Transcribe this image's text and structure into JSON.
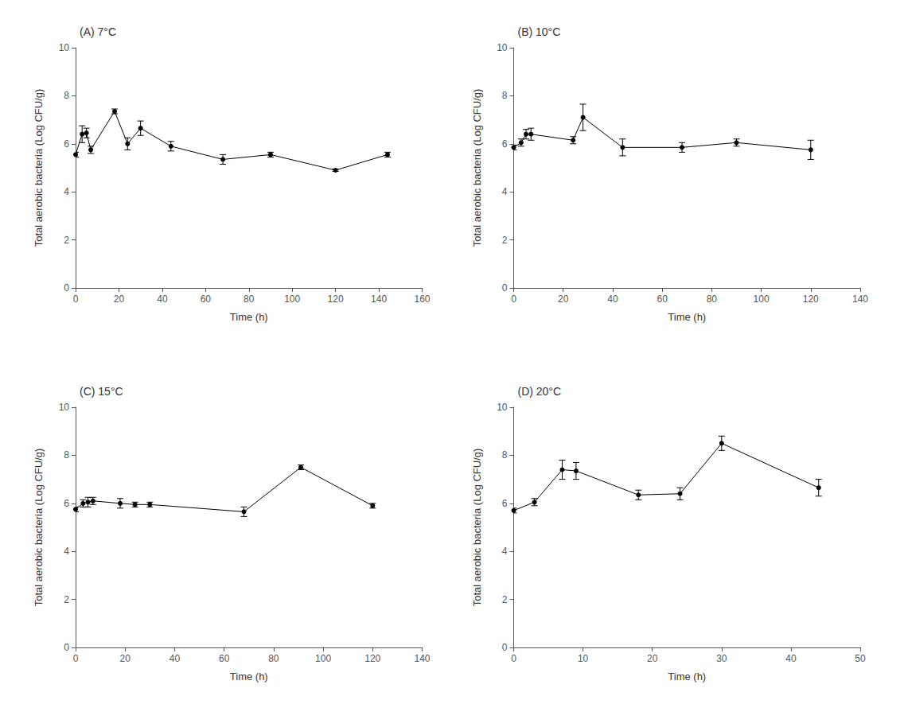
{
  "chart_data": [
    {
      "type": "line",
      "title": "(A) 7°C",
      "xlabel": "Time (h)",
      "ylabel": "Total aerobic bacteria (Log CFU/g)",
      "x": [
        0,
        3,
        5,
        7,
        18,
        24,
        30,
        44,
        68,
        90,
        120,
        144
      ],
      "values": [
        5.55,
        6.4,
        6.45,
        5.75,
        7.35,
        6.0,
        6.65,
        5.9,
        5.35,
        5.55,
        4.9,
        5.55
      ],
      "yerr": [
        0.1,
        0.35,
        0.2,
        0.15,
        0.1,
        0.25,
        0.3,
        0.2,
        0.2,
        0.1,
        0.05,
        0.1
      ],
      "xlim": [
        0,
        160
      ],
      "xticks": [
        0,
        20,
        40,
        60,
        80,
        100,
        120,
        140,
        160
      ],
      "ylim": [
        0,
        10
      ],
      "yticks": [
        0,
        2,
        4,
        6,
        8,
        10
      ],
      "color": "#000000",
      "marker": "circle",
      "line_style": "solid",
      "grid": false
    },
    {
      "type": "line",
      "title": "(B) 10°C",
      "xlabel": "Time (h)",
      "ylabel": "Total aerobic bacteria (Log CFU/g)",
      "x": [
        0,
        3,
        5,
        7,
        24,
        28,
        44,
        68,
        90,
        120
      ],
      "values": [
        5.85,
        6.05,
        6.4,
        6.4,
        6.15,
        7.1,
        5.85,
        5.85,
        6.05,
        5.75
      ],
      "yerr": [
        0.1,
        0.15,
        0.2,
        0.25,
        0.15,
        0.55,
        0.35,
        0.2,
        0.15,
        0.4
      ],
      "xlim": [
        0,
        140
      ],
      "xticks": [
        0,
        20,
        40,
        60,
        80,
        100,
        120,
        140
      ],
      "ylim": [
        0,
        10
      ],
      "yticks": [
        0,
        2,
        4,
        6,
        8,
        10
      ],
      "color": "#000000",
      "marker": "circle",
      "line_style": "solid",
      "grid": false
    },
    {
      "type": "line",
      "title": "(C) 15°C",
      "xlabel": "Time (h)",
      "ylabel": "Total aerobic bacteria (Log CFU/g)",
      "x": [
        0,
        3,
        5,
        7,
        18,
        24,
        30,
        68,
        91,
        120
      ],
      "values": [
        5.75,
        6.0,
        6.05,
        6.1,
        6.0,
        5.95,
        5.95,
        5.65,
        7.5,
        5.9
      ],
      "yerr": [
        0.1,
        0.15,
        0.2,
        0.15,
        0.2,
        0.1,
        0.1,
        0.2,
        0.1,
        0.1
      ],
      "xlim": [
        0,
        140
      ],
      "xticks": [
        0,
        20,
        40,
        60,
        80,
        100,
        120,
        140
      ],
      "ylim": [
        0,
        10
      ],
      "yticks": [
        0,
        2,
        4,
        6,
        8,
        10
      ],
      "color": "#000000",
      "marker": "circle",
      "line_style": "solid",
      "grid": false
    },
    {
      "type": "line",
      "title": "(D) 20°C",
      "xlabel": "Time (h)",
      "ylabel": "Total aerobic bacteria (Log CFU/g)",
      "x": [
        0,
        3,
        7,
        9,
        18,
        24,
        30,
        44
      ],
      "values": [
        5.7,
        6.05,
        7.4,
        7.35,
        6.35,
        6.4,
        8.5,
        6.65
      ],
      "yerr": [
        0.1,
        0.15,
        0.4,
        0.35,
        0.2,
        0.25,
        0.3,
        0.35
      ],
      "xlim": [
        0,
        50
      ],
      "xticks": [
        0,
        10,
        20,
        30,
        40,
        50
      ],
      "ylim": [
        0,
        10
      ],
      "yticks": [
        0,
        2,
        4,
        6,
        8,
        10
      ],
      "color": "#000000",
      "marker": "circle",
      "line_style": "solid",
      "grid": false
    }
  ]
}
